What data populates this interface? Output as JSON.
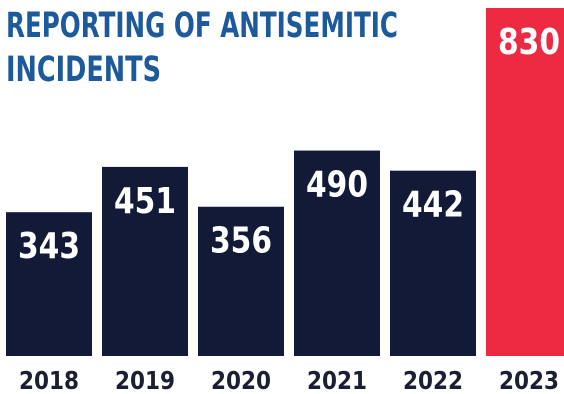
{
  "chart_data": {
    "type": "bar",
    "title_lines": [
      "REPORTING OF ANTISEMITIC",
      "INCIDENTS"
    ],
    "categories": [
      "2018",
      "2019",
      "2020",
      "2021",
      "2022",
      "2023"
    ],
    "values": [
      343,
      451,
      356,
      490,
      442,
      830
    ],
    "highlight_index": 5,
    "colors": {
      "bar": "#131a37",
      "highlight": "#ee2a43",
      "title": "#1d5a9c",
      "axis_text": "#1b1f33"
    },
    "grid": false,
    "legend": "none",
    "ylim": [
      0,
      830
    ]
  }
}
